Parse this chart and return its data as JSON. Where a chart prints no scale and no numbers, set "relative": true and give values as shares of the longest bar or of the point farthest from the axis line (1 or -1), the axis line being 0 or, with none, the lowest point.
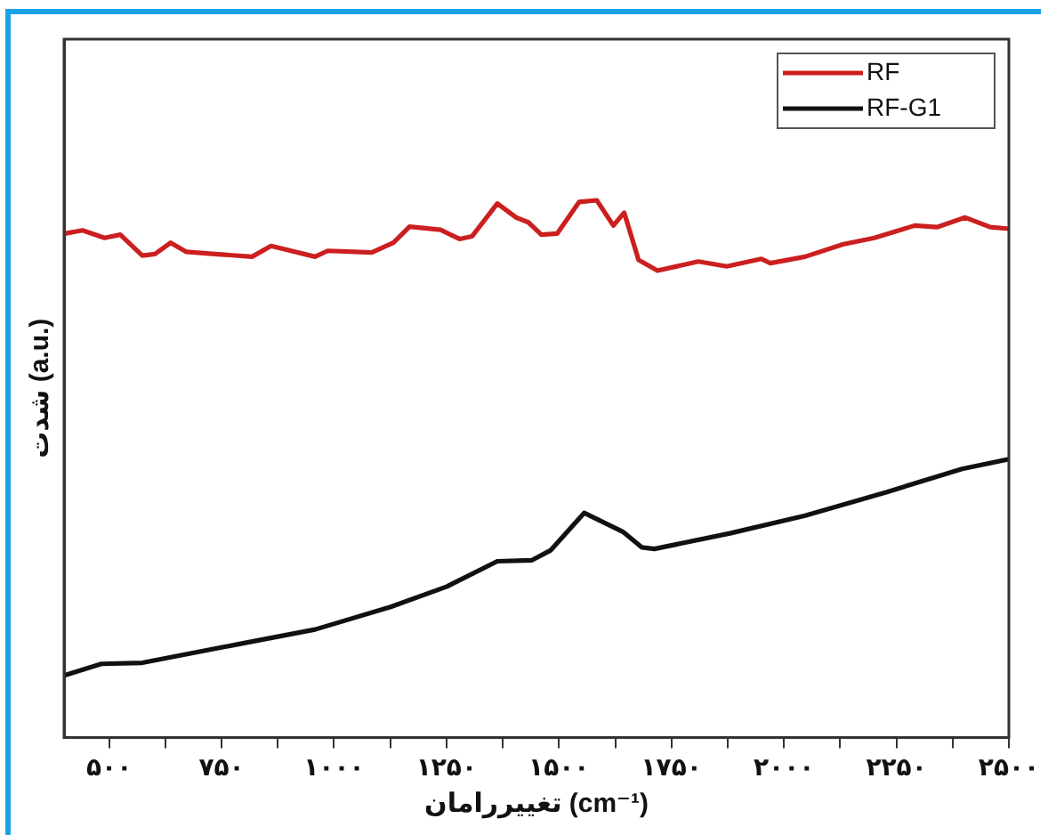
{
  "chart_data": {
    "type": "line",
    "relative": true,
    "xlabel": "تغییررامان (cm⁻¹)",
    "ylabel": "شدت (a.u.)",
    "xlim": [
      400,
      2500
    ],
    "xticks": [
      {
        "value": 500,
        "label": "۵۰۰"
      },
      {
        "value": 625,
        "label": null
      },
      {
        "value": 750,
        "label": "۷۵۰"
      },
      {
        "value": 875,
        "label": null
      },
      {
        "value": 1000,
        "label": "۱۰۰۰"
      },
      {
        "value": 1125,
        "label": null
      },
      {
        "value": 1250,
        "label": "۱۲۵۰"
      },
      {
        "value": 1375,
        "label": null
      },
      {
        "value": 1500,
        "label": "۱۵۰۰"
      },
      {
        "value": 1625,
        "label": null
      },
      {
        "value": 1750,
        "label": "۱۷۵۰"
      },
      {
        "value": 1875,
        "label": null
      },
      {
        "value": 2000,
        "label": "۲۰۰۰"
      },
      {
        "value": 2125,
        "label": null
      },
      {
        "value": 2250,
        "label": "۲۲۵۰"
      },
      {
        "value": 2375,
        "label": null
      },
      {
        "value": 2500,
        "label": "۲۵۰۰"
      }
    ],
    "grid": false,
    "legend": "top right",
    "marker": "none",
    "line_style": "solid",
    "series": [
      {
        "name": "RF",
        "color": "#cc1f1f",
        "x": [
          402,
          441,
          490,
          525,
          574,
          602,
          637,
          672,
          735,
          818,
          860,
          958,
          986,
          1084,
          1132,
          1168,
          1237,
          1279,
          1307,
          1363,
          1405,
          1432,
          1461,
          1496,
          1545,
          1584,
          1621,
          1645,
          1677,
          1719,
          1810,
          1873,
          1950,
          1970,
          2047,
          2131,
          2201,
          2291,
          2340,
          2403,
          2459,
          2500
        ],
        "values": [
          0.938,
          0.944,
          0.93,
          0.936,
          0.897,
          0.9,
          0.921,
          0.904,
          0.9,
          0.895,
          0.915,
          0.895,
          0.906,
          0.903,
          0.921,
          0.951,
          0.945,
          0.928,
          0.933,
          0.994,
          0.968,
          0.959,
          0.936,
          0.938,
          0.997,
          1,
          0.953,
          0.977,
          0.889,
          0.869,
          0.886,
          0.877,
          0.891,
          0.883,
          0.895,
          0.918,
          0.93,
          0.953,
          0.95,
          0.968,
          0.95,
          0.947
        ]
      },
      {
        "name": "RF-G1",
        "color": "#111111",
        "x": [
          402,
          483,
          574,
          790,
          958,
          1126,
          1251,
          1363,
          1440,
          1481,
          1556,
          1642,
          1684,
          1712,
          1880,
          2047,
          2229,
          2396,
          2500
        ],
        "values": [
          0.116,
          0.137,
          0.139,
          0.174,
          0.201,
          0.243,
          0.281,
          0.328,
          0.33,
          0.348,
          0.418,
          0.383,
          0.354,
          0.351,
          0.38,
          0.413,
          0.457,
          0.5,
          0.518
        ]
      }
    ]
  }
}
